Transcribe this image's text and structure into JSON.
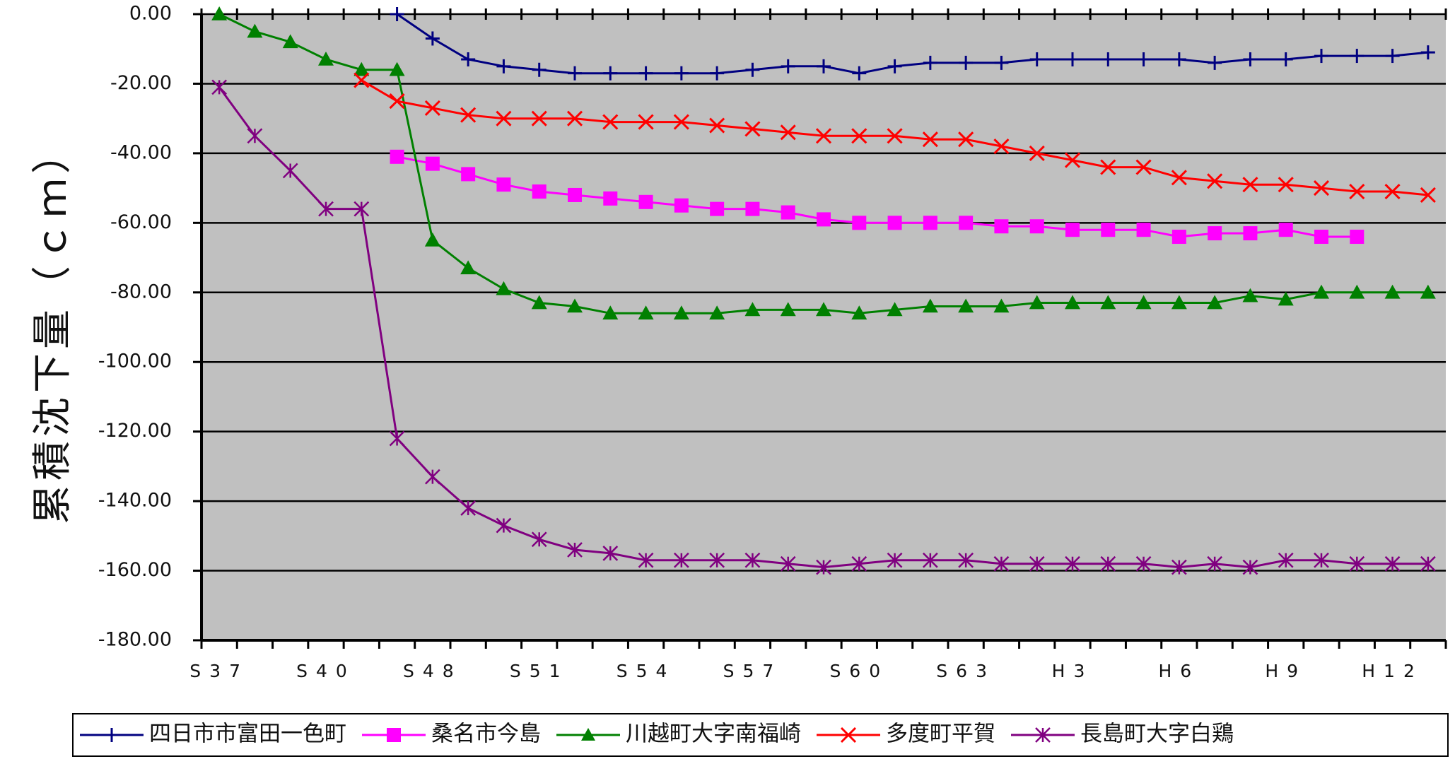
{
  "chart_data": {
    "type": "line",
    "ylabel": "累積沈下量（ｃｍ）",
    "xlabel": "",
    "ylim": [
      -180,
      0
    ],
    "ytick_labels": [
      "0.00",
      "-20.00",
      "-40.00",
      "-60.00",
      "-80.00",
      "-100.00",
      "-120.00",
      "-140.00",
      "-160.00",
      "-180.00"
    ],
    "x_tick_labels": [
      "S37",
      "S40",
      "S48",
      "S51",
      "S54",
      "S57",
      "S60",
      "S63",
      "H3",
      "H6",
      "H9",
      "H12"
    ],
    "x_tick_label_index": [
      0,
      3,
      6,
      9,
      12,
      15,
      18,
      21,
      24,
      27,
      30,
      33
    ],
    "n_points": 35,
    "grid": true,
    "legend_position": "bottom",
    "background": "#c0c0c0",
    "series": [
      {
        "name": "四日市市富田一色町",
        "color": "#000080",
        "marker": "plus",
        "x": [
          5.5,
          6.5,
          7.5,
          8.5,
          9.5,
          10.5,
          11.5,
          12.5,
          13.5,
          14.5,
          15.5,
          16.5,
          17.5,
          18.5,
          19.5,
          20.5,
          21.5,
          22.5,
          23.5,
          24.5,
          25.5,
          26.5,
          27.5,
          28.5,
          29.5,
          30.5,
          31.5,
          32.5,
          33.5,
          34.5
        ],
        "values": [
          0,
          -7,
          -13,
          -15,
          -16,
          -17,
          -17,
          -17,
          -17,
          -17,
          -16,
          -15,
          -15,
          -17,
          -15,
          -14,
          -14,
          -14,
          -13,
          -13,
          -13,
          -13,
          -13,
          -14,
          -13,
          -13,
          -12,
          -12,
          -12,
          -11
        ]
      },
      {
        "name": "桑名市今島",
        "color": "#ff00ff",
        "marker": "square",
        "x": [
          5.5,
          6.5,
          7.5,
          8.5,
          9.5,
          10.5,
          11.5,
          12.5,
          13.5,
          14.5,
          15.5,
          16.5,
          17.5,
          18.5,
          19.5,
          20.5,
          21.5,
          22.5,
          23.5,
          24.5,
          25.5,
          26.5,
          27.5,
          28.5,
          29.5,
          30.5,
          31.5,
          32.5
        ],
        "values": [
          -41,
          -43,
          -46,
          -49,
          -51,
          -52,
          -53,
          -54,
          -55,
          -56,
          -56,
          -57,
          -59,
          -60,
          -60,
          -60,
          -60,
          -61,
          -61,
          -62,
          -62,
          -62,
          -64,
          -63,
          -63,
          -62,
          -64,
          -64
        ]
      },
      {
        "name": "川越町大字南福崎",
        "color": "#008000",
        "marker": "triangle",
        "x": [
          0.5,
          1.5,
          2.5,
          3.5,
          4.5,
          5.5,
          6.5,
          7.5,
          8.5,
          9.5,
          10.5,
          11.5,
          12.5,
          13.5,
          14.5,
          15.5,
          16.5,
          17.5,
          18.5,
          19.5,
          20.5,
          21.5,
          22.5,
          23.5,
          24.5,
          25.5,
          26.5,
          27.5,
          28.5,
          29.5,
          30.5,
          31.5,
          32.5,
          33.5,
          34.5
        ],
        "values": [
          0,
          -5,
          -8,
          -13,
          -16,
          -16,
          -65,
          -73,
          -79,
          -83,
          -84,
          -86,
          -86,
          -86,
          -86,
          -85,
          -85,
          -85,
          -86,
          -85,
          -84,
          -84,
          -84,
          -83,
          -83,
          -83,
          -83,
          -83,
          -83,
          -81,
          -82,
          -80,
          -80,
          -80,
          -80
        ]
      },
      {
        "name": "多度町平賀",
        "color": "#ff0000",
        "marker": "x",
        "x": [
          4.5,
          5.5,
          6.5,
          7.5,
          8.5,
          9.5,
          10.5,
          11.5,
          12.5,
          13.5,
          14.5,
          15.5,
          16.5,
          17.5,
          18.5,
          19.5,
          20.5,
          21.5,
          22.5,
          23.5,
          24.5,
          25.5,
          26.5,
          27.5,
          28.5,
          29.5,
          30.5,
          31.5,
          32.5,
          33.5,
          34.5
        ],
        "values": [
          -19,
          -25,
          -27,
          -29,
          -30,
          -30,
          -30,
          -31,
          -31,
          -31,
          -32,
          -33,
          -34,
          -35,
          -35,
          -35,
          -36,
          -36,
          -38,
          -40,
          -42,
          -44,
          -44,
          -47,
          -48,
          -49,
          -49,
          -50,
          -51,
          -51,
          -52
        ]
      },
      {
        "name": "長島町大字白鶏",
        "color": "#800080",
        "marker": "asterisk",
        "x": [
          0.5,
          1.5,
          2.5,
          3.5,
          4.5,
          5.5,
          6.5,
          7.5,
          8.5,
          9.5,
          10.5,
          11.5,
          12.5,
          13.5,
          14.5,
          15.5,
          16.5,
          17.5,
          18.5,
          19.5,
          20.5,
          21.5,
          22.5,
          23.5,
          24.5,
          25.5,
          26.5,
          27.5,
          28.5,
          29.5,
          30.5,
          31.5,
          32.5,
          33.5,
          34.5
        ],
        "values": [
          -21,
          -35,
          -45,
          -56,
          -56,
          -122,
          -133,
          -142,
          -147,
          -151,
          -154,
          -155,
          -157,
          -157,
          -157,
          -157,
          -158,
          -159,
          -158,
          -157,
          -157,
          -157,
          -158,
          -158,
          -158,
          -158,
          -158,
          -159,
          -158,
          -159,
          -157,
          -157,
          -158,
          -158,
          -158
        ]
      }
    ]
  }
}
